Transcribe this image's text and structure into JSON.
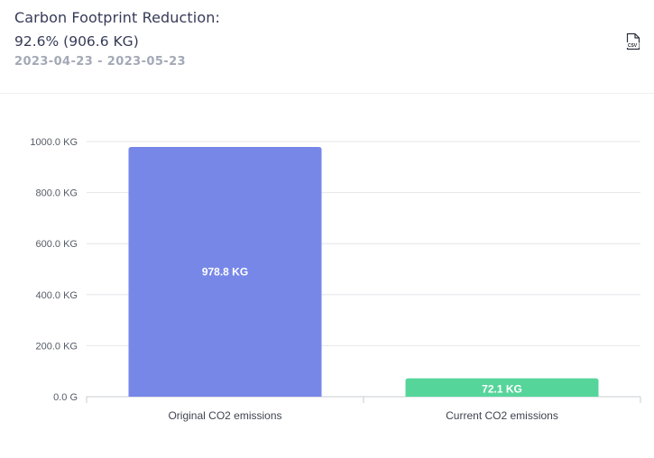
{
  "header": {
    "title": "Carbon Footprint Reduction:",
    "reduction": "92.6% (906.6 KG)",
    "date_range": "2023-04-23 - 2023-05-23",
    "csv_icon_label": "CSV",
    "csv_icon": "csv-file-icon"
  },
  "chart_data": {
    "type": "bar",
    "categories": [
      "Original CO2 emissions",
      "Current CO2 emissions"
    ],
    "values": [
      978.8,
      72.1
    ],
    "data_labels": [
      "978.8 KG",
      "72.1 KG"
    ],
    "colors": [
      "#7787e8",
      "#56d59b"
    ],
    "ylim": [
      0,
      1000
    ],
    "yticks": [
      0,
      200,
      400,
      600,
      800,
      1000
    ],
    "ytick_labels": [
      "0.0 G",
      "200.0 KG",
      "400.0 KG",
      "600.0 KG",
      "800.0 KG",
      "1000.0 KG"
    ],
    "title": "",
    "xlabel": "",
    "ylabel": "",
    "grid": true,
    "legend": "none"
  }
}
